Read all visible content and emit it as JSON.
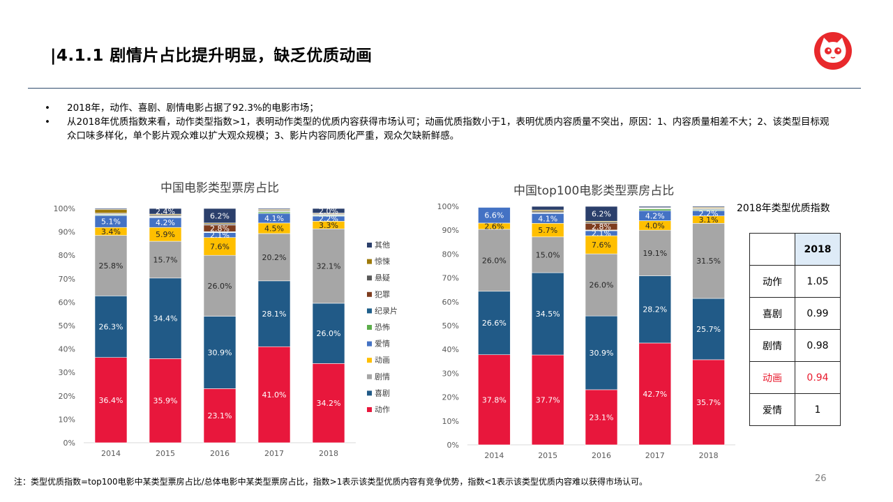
{
  "header": {
    "title": "|4.1.1 剧情片占比提升明显，缺乏优质动画"
  },
  "bullets": [
    "2018年，动作、喜剧、剧情电影占据了92.3%的电影市场；",
    "从2018年优质指数来看，动作类型指数>1，表明动作类型的优质内容获得市场认可；动画优质指数小于1，表明优质内容质量不突出，原因：1、内容质量相差不大；2、该类型目标观众口味多样化，单个影片观众难以扩大观众规模；3、影片内容同质化严重，观众欠缺新鲜感。"
  ],
  "bullet_symbol": "•",
  "legend_items": [
    "其他",
    "惊悚",
    "悬疑",
    "犯罪",
    "纪录片",
    "恐怖",
    "爱情",
    "动画",
    "剧情",
    "喜剧",
    "动作"
  ],
  "colors": {
    "动作": "#e8173c",
    "喜剧": "#215a87",
    "剧情": "#a6a6a6",
    "动画": "#ffbf00",
    "爱情": "#4472c4",
    "恐怖": "#5cad4a",
    "纪录片": "#1f5f8b",
    "犯罪": "#7e3c1e",
    "悬疑": "#595959",
    "惊悚": "#9e7a0b",
    "其他": "#2b3f6b"
  },
  "chart_data": [
    {
      "type": "bar",
      "stacked": true,
      "title": "中国电影类型票房占比",
      "categories": [
        "2014",
        "2015",
        "2016",
        "2017",
        "2018"
      ],
      "yticks": [
        "0%",
        "10%",
        "20%",
        "30%",
        "40%",
        "50%",
        "60%",
        "70%",
        "80%",
        "90%",
        "100%"
      ],
      "ylim": [
        0,
        100
      ],
      "series": [
        {
          "name": "动作",
          "values": [
            36.4,
            35.9,
            23.1,
            41.0,
            34.2
          ],
          "labels": [
            "36.4%",
            "35.9%",
            "23.1%",
            "41.0%",
            "34.2%"
          ]
        },
        {
          "name": "喜剧",
          "values": [
            26.3,
            34.4,
            30.9,
            28.1,
            26.0
          ],
          "labels": [
            "26.3%",
            "34.4%",
            "30.9%",
            "28.1%",
            "26.0%"
          ]
        },
        {
          "name": "剧情",
          "values": [
            25.8,
            15.7,
            26.0,
            20.2,
            32.1
          ],
          "labels": [
            "25.8%",
            "15.7%",
            "26.0%",
            "20.2%",
            "32.1%"
          ]
        },
        {
          "name": "动画",
          "values": [
            3.4,
            5.9,
            7.6,
            4.5,
            3.3
          ],
          "labels": [
            "3.4%",
            "5.9%",
            "7.6%",
            "4.5%",
            "3.3%"
          ]
        },
        {
          "name": "爱情",
          "values": [
            5.1,
            4.2,
            2.1,
            4.1,
            2.2
          ],
          "labels": [
            "5.1%",
            "4.2%",
            "2.1%",
            "4.1%",
            "2.2%"
          ]
        },
        {
          "name": "恐怖",
          "values": [
            0.3,
            0.2,
            0.2,
            0.6,
            0.3
          ],
          "labels": [
            "",
            "",
            "",
            "",
            ""
          ]
        },
        {
          "name": "纪录片",
          "values": [
            0.2,
            0.2,
            0.2,
            0.2,
            0.2
          ],
          "labels": [
            "",
            "",
            "",
            "",
            ""
          ]
        },
        {
          "name": "犯罪",
          "values": [
            0.2,
            0.2,
            2.8,
            0.2,
            0.2
          ],
          "labels": [
            "",
            "",
            "2.8%",
            "",
            ""
          ]
        },
        {
          "name": "悬疑",
          "values": [
            0.3,
            0.5,
            0.5,
            0.3,
            0.3
          ],
          "labels": [
            "",
            "",
            "",
            "",
            ""
          ]
        },
        {
          "name": "惊悚",
          "values": [
            1.6,
            0.4,
            0.4,
            0.4,
            0.3
          ],
          "labels": [
            "",
            "",
            "",
            "",
            ""
          ]
        },
        {
          "name": "其他",
          "values": [
            0.4,
            2.4,
            6.2,
            0.4,
            2.0
          ],
          "labels": [
            "",
            "2.4%",
            "6.2%",
            "",
            "2.0%"
          ]
        }
      ]
    },
    {
      "type": "bar",
      "stacked": true,
      "title": "中国top100电影类型票房占比",
      "categories": [
        "2014",
        "2015",
        "2016",
        "2017",
        "2018"
      ],
      "yticks": [
        "0%",
        "10%",
        "20%",
        "30%",
        "40%",
        "50%",
        "60%",
        "70%",
        "80%",
        "90%",
        "100%"
      ],
      "ylim": [
        0,
        100
      ],
      "series": [
        {
          "name": "动作",
          "values": [
            37.8,
            37.7,
            23.1,
            42.7,
            35.7
          ],
          "labels": [
            "37.8%",
            "37.7%",
            "23.1%",
            "42.7%",
            "35.7%"
          ]
        },
        {
          "name": "喜剧",
          "values": [
            26.6,
            34.5,
            30.9,
            28.2,
            25.7
          ],
          "labels": [
            "26.6%",
            "34.5%",
            "30.9%",
            "28.2%",
            "25.7%"
          ]
        },
        {
          "name": "剧情",
          "values": [
            26.0,
            15.0,
            26.0,
            19.1,
            31.5
          ],
          "labels": [
            "26.0%",
            "15.0%",
            "26.0%",
            "19.1%",
            "31.5%"
          ]
        },
        {
          "name": "动画",
          "values": [
            2.6,
            5.7,
            7.6,
            4.0,
            3.1
          ],
          "labels": [
            "2.6%",
            "5.7%",
            "7.6%",
            "4.0%",
            "3.1%"
          ]
        },
        {
          "name": "爱情",
          "values": [
            6.6,
            4.1,
            2.1,
            4.2,
            2.2
          ],
          "labels": [
            "6.6%",
            "4.1%",
            "2.1%",
            "4.2%",
            "2.2%"
          ]
        },
        {
          "name": "恐怖",
          "values": [
            0.1,
            0.2,
            0.2,
            0.7,
            0.3
          ],
          "labels": [
            "",
            "",
            "",
            "",
            ""
          ]
        },
        {
          "name": "纪录片",
          "values": [
            0.1,
            0.1,
            0.1,
            0.1,
            0.3
          ],
          "labels": [
            "",
            "",
            "",
            "",
            ""
          ]
        },
        {
          "name": "犯罪",
          "values": [
            0.1,
            0.1,
            2.8,
            0.1,
            0.2
          ],
          "labels": [
            "",
            "",
            "2.8%",
            "",
            ""
          ]
        },
        {
          "name": "悬疑",
          "values": [
            0.1,
            0.6,
            0.5,
            0.2,
            0.2
          ],
          "labels": [
            "",
            "",
            "",
            "",
            ""
          ]
        },
        {
          "name": "惊悚",
          "values": [
            0.0,
            0.5,
            0.4,
            0.2,
            0.4
          ],
          "labels": [
            "",
            "",
            "",
            "",
            ""
          ]
        },
        {
          "name": "其他",
          "values": [
            0.0,
            1.5,
            6.2,
            0.5,
            0.4
          ],
          "labels": [
            "",
            "",
            "6.2%",
            "",
            ""
          ]
        }
      ]
    }
  ],
  "index_table": {
    "title": "2018年类型优质指数",
    "header": "2018",
    "rows": [
      {
        "genre": "动作",
        "value": "1.05"
      },
      {
        "genre": "喜剧",
        "value": "0.99"
      },
      {
        "genre": "剧情",
        "value": "0.98"
      },
      {
        "genre": "动画",
        "value": "0.94",
        "highlight": true
      },
      {
        "genre": "爱情",
        "value": "1"
      }
    ]
  },
  "footer": {
    "note": "注：类型优质指数=top100电影中某类型票房占比/总体电影中某类型票房占比，指数>1表示该类型优质内容有竞争优势，指数<1表示该类型优质内容难以获得市场认可。",
    "page_number": "26"
  },
  "logo": {
    "icon": "cat-face-icon"
  }
}
